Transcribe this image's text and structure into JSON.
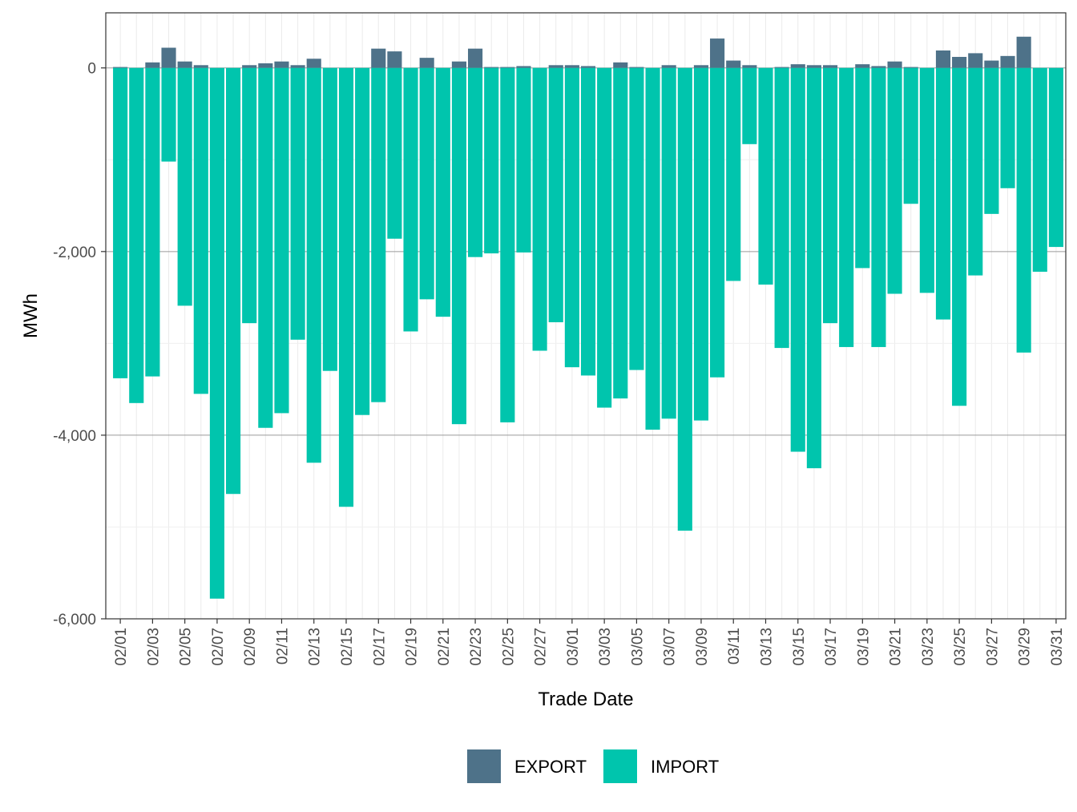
{
  "chart_data": {
    "type": "bar",
    "stacked": true,
    "xlabel": "Trade Date",
    "ylabel": "MWh",
    "ylim": [
      -6000,
      600
    ],
    "yticks": [
      0,
      -2000,
      -4000,
      -6000
    ],
    "ytick_labels": [
      "0",
      "-2,000",
      "-4,000",
      "-6,000"
    ],
    "grid": true,
    "legend_position": "bottom",
    "categories": [
      "02/01",
      "02/02",
      "02/03",
      "02/04",
      "02/05",
      "02/06",
      "02/07",
      "02/08",
      "02/09",
      "02/10",
      "02/11",
      "02/12",
      "02/13",
      "02/14",
      "02/15",
      "02/16",
      "02/17",
      "02/18",
      "02/19",
      "02/20",
      "02/21",
      "02/22",
      "02/23",
      "02/24",
      "02/25",
      "02/26",
      "02/27",
      "02/28",
      "03/01",
      "03/02",
      "03/03",
      "03/04",
      "03/05",
      "03/06",
      "03/07",
      "03/08",
      "03/09",
      "03/10",
      "03/11",
      "03/12",
      "03/13",
      "03/14",
      "03/15",
      "03/16",
      "03/17",
      "03/18",
      "03/19",
      "03/20",
      "03/21",
      "03/22",
      "03/23",
      "03/24",
      "03/25",
      "03/26",
      "03/27",
      "03/28",
      "03/29",
      "03/30",
      "03/31"
    ],
    "xtick_labels": [
      "02/01",
      "02/03",
      "02/05",
      "02/07",
      "02/09",
      "02/11",
      "02/13",
      "02/15",
      "02/17",
      "02/19",
      "02/21",
      "02/23",
      "02/25",
      "02/27",
      "03/01",
      "03/03",
      "03/05",
      "03/07",
      "03/09",
      "03/11",
      "03/13",
      "03/15",
      "03/17",
      "03/19",
      "03/21",
      "03/23",
      "03/25",
      "03/27",
      "03/29",
      "03/31"
    ],
    "series": [
      {
        "name": "EXPORT",
        "color": "#4e7289",
        "values": [
          10,
          0,
          60,
          220,
          70,
          30,
          0,
          0,
          30,
          50,
          70,
          30,
          100,
          0,
          0,
          0,
          210,
          180,
          0,
          110,
          0,
          70,
          210,
          10,
          10,
          20,
          0,
          30,
          30,
          20,
          0,
          60,
          10,
          0,
          30,
          0,
          30,
          320,
          80,
          30,
          0,
          10,
          40,
          30,
          30,
          0,
          40,
          20,
          70,
          10,
          0,
          190,
          120,
          160,
          80,
          130,
          340,
          0,
          0
        ]
      },
      {
        "name": "IMPORT",
        "color": "#00c5ad",
        "values": [
          -3380,
          -3650,
          -3360,
          -1020,
          -2590,
          -3550,
          -5780,
          -4640,
          -2780,
          -3920,
          -3760,
          -2960,
          -4300,
          -3300,
          -4780,
          -3780,
          -3640,
          -1860,
          -2870,
          -2520,
          -2710,
          -3880,
          -2060,
          -2020,
          -3860,
          -2010,
          -3080,
          -2770,
          -3260,
          -3350,
          -3700,
          -3600,
          -3290,
          -3940,
          -3820,
          -5040,
          -3840,
          -3370,
          -2320,
          -830,
          -2360,
          -3050,
          -4180,
          -4360,
          -2780,
          -3040,
          -2180,
          -3040,
          -2460,
          -1480,
          -2450,
          -2740,
          -3680,
          -2260,
          -1590,
          -1310,
          -3100,
          -2220,
          -1950
        ]
      }
    ]
  }
}
